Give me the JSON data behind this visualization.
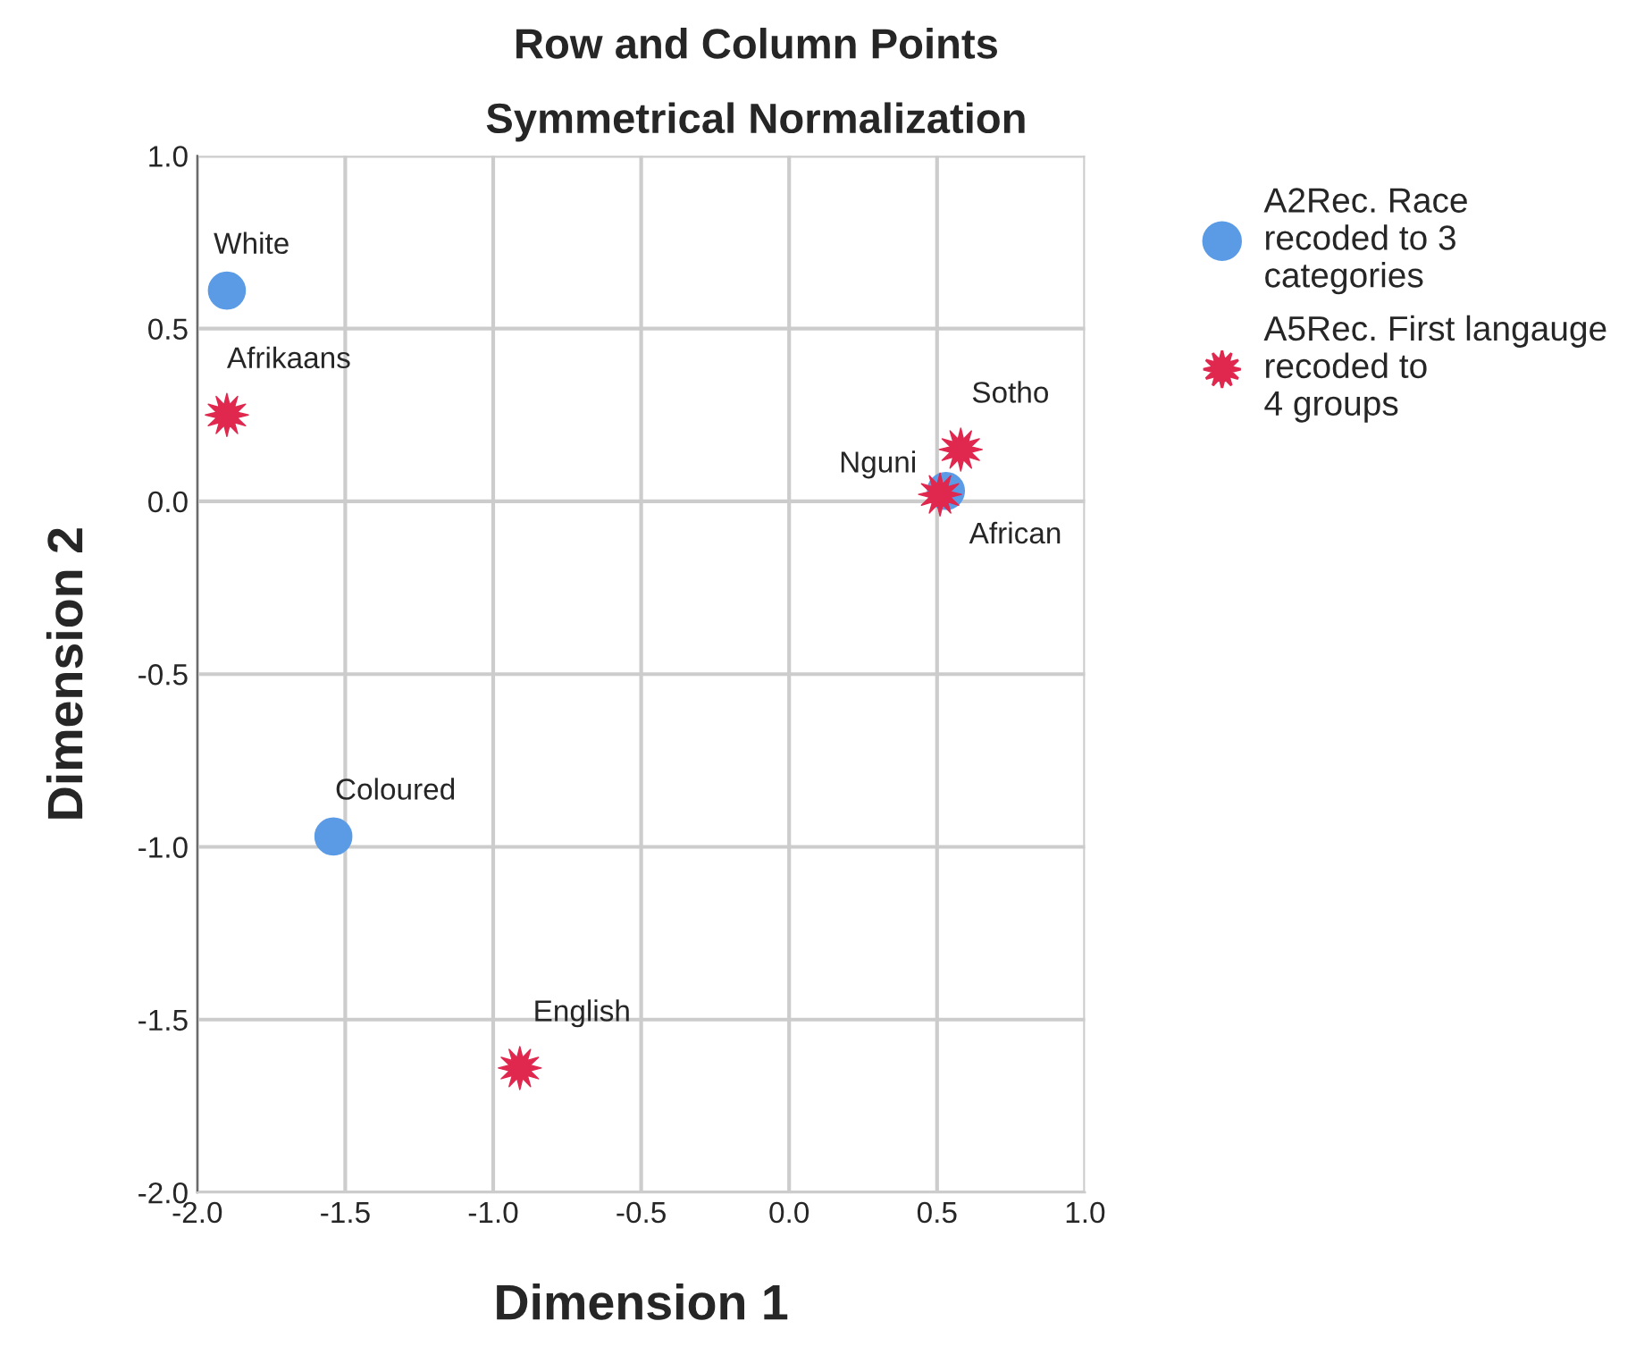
{
  "chart_data": {
    "type": "scatter",
    "title": "Row and Column Points",
    "subtitle": "Symmetrical Normalization",
    "xlabel": "Dimension 1",
    "ylabel": "Dimension 2",
    "xlim": [
      -2.0,
      1.0
    ],
    "xticks": [
      {
        "value": -2.0,
        "label": "-2.0"
      },
      {
        "value": -1.5,
        "label": "-1.5"
      },
      {
        "value": -1.0,
        "label": "-1.0"
      },
      {
        "value": -0.5,
        "label": "-0.5"
      },
      {
        "value": 0.0,
        "label": "0.0"
      },
      {
        "value": 0.5,
        "label": "0.5"
      },
      {
        "value": 1.0,
        "label": "1.0"
      }
    ],
    "ylim": [
      -2.0,
      1.0
    ],
    "yticks": [
      {
        "value": -2.0,
        "label": "-2.0"
      },
      {
        "value": -1.5,
        "label": "-1.5"
      },
      {
        "value": -1.0,
        "label": "-1.0"
      },
      {
        "value": -0.5,
        "label": "-0.5"
      },
      {
        "value": 0.0,
        "label": "0.0"
      },
      {
        "value": 0.5,
        "label": "0.5"
      },
      {
        "value": 1.0,
        "label": "1.0"
      }
    ],
    "grid": true,
    "legend": "right",
    "series": [
      {
        "name": "A2Rec. Race recoded to 3 categories",
        "color": "#5b9be6",
        "marker": "circle",
        "x": [
          -1.9,
          -1.54,
          0.53
        ],
        "values": [
          0.61,
          -0.97,
          0.03
        ]
      },
      {
        "name": "A5Rec. First langauge recoded to 4 groups",
        "color": "#e0284f",
        "marker": "star",
        "x": [
          -1.9,
          -0.91,
          0.51,
          0.58
        ],
        "values": [
          0.25,
          -1.64,
          0.02,
          0.15
        ]
      }
    ],
    "annotations": [
      {
        "text": "White",
        "x": -1.9,
        "y": 0.61
      },
      {
        "text": "Coloured",
        "x": -1.54,
        "y": -0.97
      },
      {
        "text": "African",
        "x": 0.53,
        "y": 0.03
      },
      {
        "text": "Afrikaans",
        "x": -1.9,
        "y": 0.25
      },
      {
        "text": "English",
        "x": -0.91,
        "y": -1.64
      },
      {
        "text": "Nguni",
        "x": 0.51,
        "y": 0.02
      },
      {
        "text": "Sotho",
        "x": 0.58,
        "y": 0.15
      }
    ]
  }
}
